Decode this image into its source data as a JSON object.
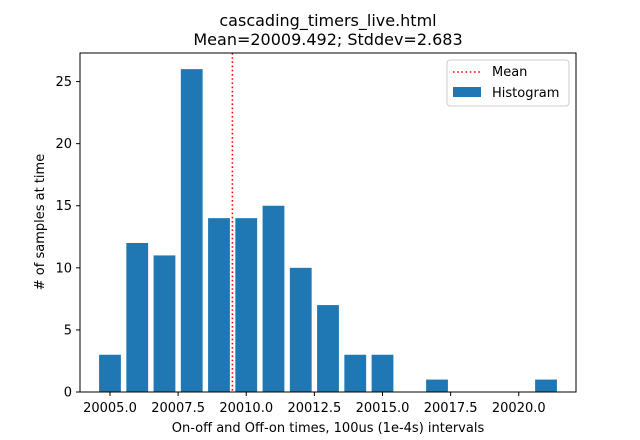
{
  "chart_data": {
    "type": "bar",
    "title": "cascading_timers_live.html",
    "subtitle": "Mean=20009.492; Stddev=2.683",
    "xlabel": "On-off and Off-on times, 100us (1e-4s) intervals",
    "ylabel": "# of samples at time",
    "xlim": [
      20003.9,
      20022.1
    ],
    "ylim": [
      0,
      27.3
    ],
    "x_ticks": [
      20005.0,
      20007.5,
      20010.0,
      20012.5,
      20015.0,
      20017.5,
      20020.0
    ],
    "x_tick_labels": [
      "20005.0",
      "20007.5",
      "20010.0",
      "20012.5",
      "20015.0",
      "20017.5",
      "20020.0"
    ],
    "y_ticks": [
      0,
      5,
      10,
      15,
      20,
      25
    ],
    "y_tick_labels": [
      "0",
      "5",
      "10",
      "15",
      "20",
      "25"
    ],
    "bar_width": 0.8,
    "series": [
      {
        "name": "Histogram",
        "color": "#1f77b4",
        "x": [
          20005,
          20006,
          20007,
          20008,
          20009,
          20010,
          20011,
          20012,
          20013,
          20014,
          20015,
          20016,
          20017,
          20018,
          20019,
          20020,
          20021
        ],
        "values": [
          3,
          12,
          11,
          26,
          14,
          14,
          15,
          10,
          7,
          3,
          3,
          0,
          1,
          0,
          0,
          0,
          1
        ]
      }
    ],
    "mean_line": {
      "name": "Mean",
      "x": 20009.492,
      "color": "#ff0000",
      "style": "dotted"
    },
    "legend": {
      "position": "top-right",
      "entries": [
        {
          "label": "Mean",
          "kind": "line",
          "color": "#ff0000"
        },
        {
          "label": "Histogram",
          "kind": "patch",
          "color": "#1f77b4"
        }
      ]
    },
    "grid": false
  }
}
